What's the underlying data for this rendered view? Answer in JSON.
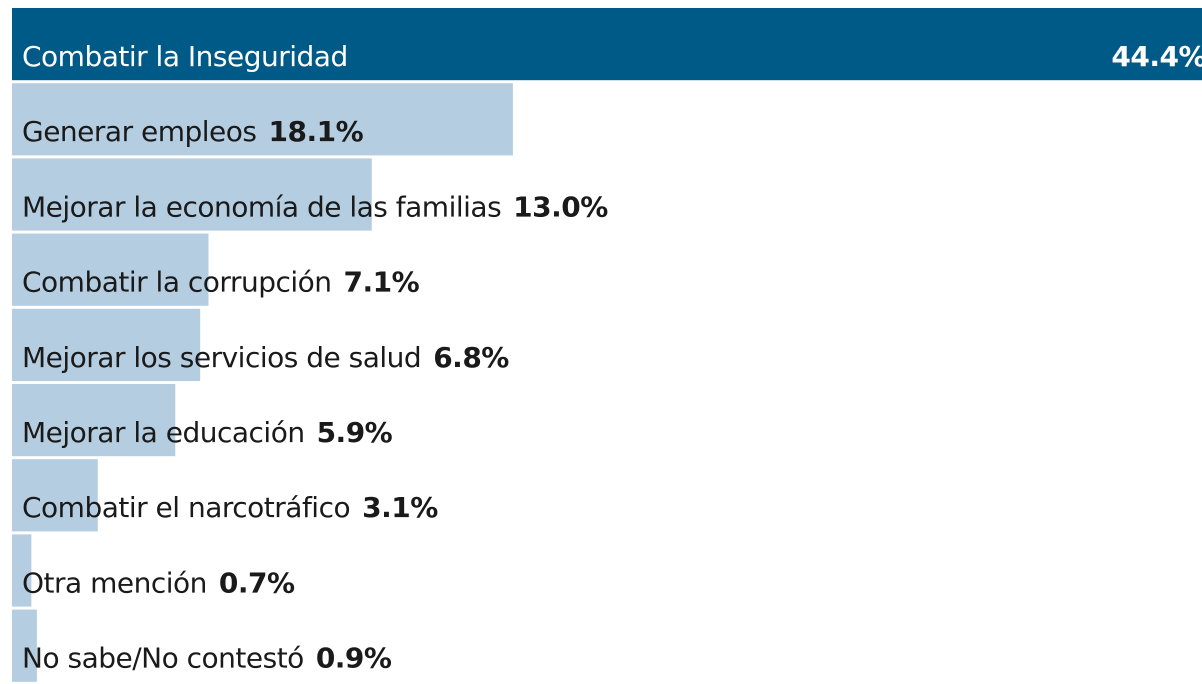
{
  "chart_data": {
    "type": "bar",
    "orientation": "horizontal",
    "categories": [
      "Combatir la Inseguridad",
      "Generar empleos",
      "Mejorar la economía de las familias",
      "Combatir la corrupción",
      "Mejorar los servicios de salud",
      "Mejorar la educación",
      "Combatir el narcotráfico",
      "Otra mención",
      "No sabe/No contestó"
    ],
    "values": [
      44.4,
      18.1,
      13.0,
      7.1,
      6.8,
      5.9,
      3.1,
      0.7,
      0.9
    ],
    "value_labels": [
      "44.4%",
      "18.1%",
      "13.0%",
      "7.1%",
      "6.8%",
      "5.9%",
      "3.1%",
      "0.7%",
      "0.9%"
    ],
    "colors": [
      "#005a87",
      "#b5cde0",
      "#b5cde0",
      "#b5cde0",
      "#b5cde0",
      "#b5cde0",
      "#b5cde0",
      "#b5cde0",
      "#b5cde0"
    ],
    "xlim": [
      0,
      43
    ]
  }
}
